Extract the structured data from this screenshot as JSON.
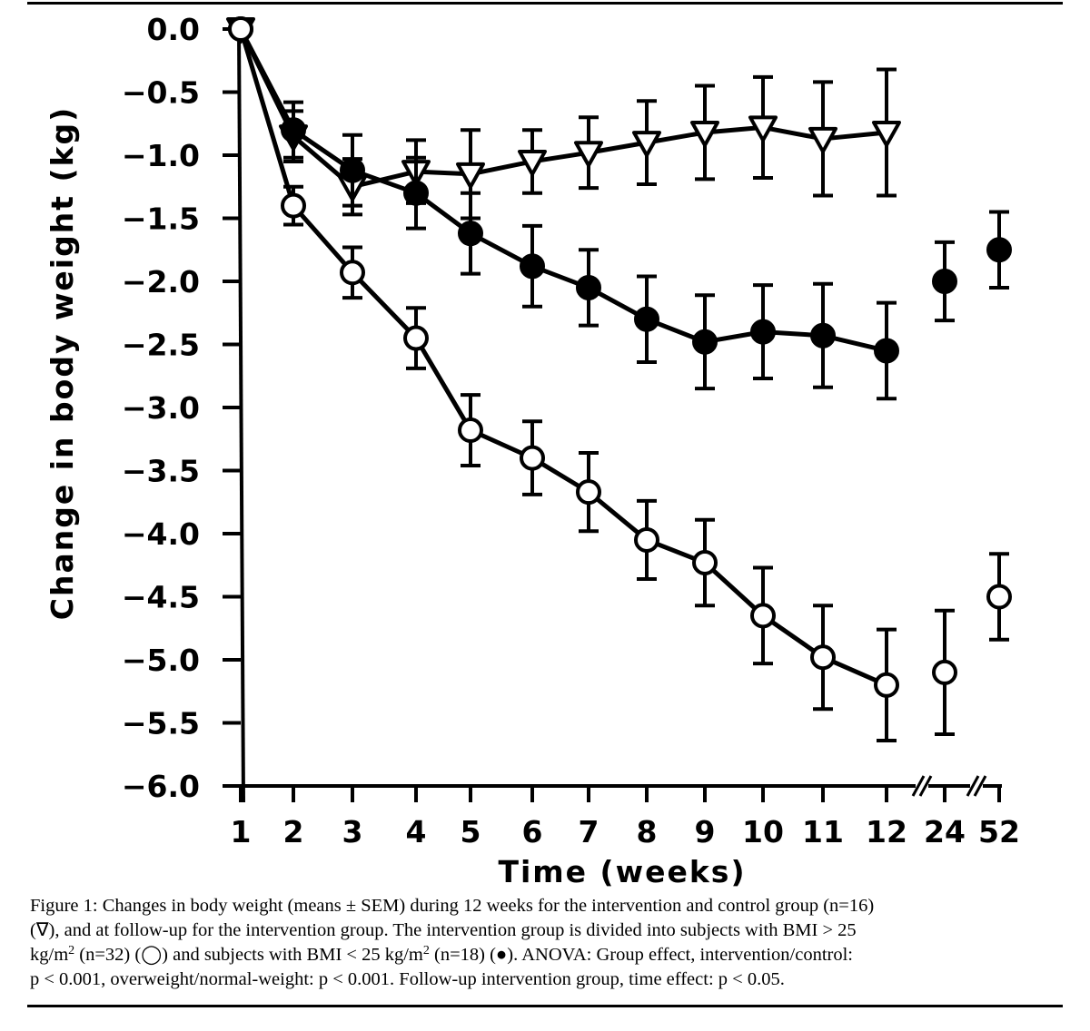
{
  "chart_data": {
    "type": "line",
    "title": "",
    "xlabel": "Time (weeks)",
    "ylabel": "Change in body weight (kg)",
    "ylim": [
      -6.0,
      0.0
    ],
    "yticks": [
      "0.0",
      "−0.5",
      "−1.0",
      "−1.5",
      "−2.0",
      "−2.5",
      "−3.0",
      "−3.5",
      "−4.0",
      "−4.5",
      "−5.0",
      "−5.5",
      "−6.0"
    ],
    "ytick_values": [
      0.0,
      -0.5,
      -1.0,
      -1.5,
      -2.0,
      -2.5,
      -3.0,
      -3.5,
      -4.0,
      -4.5,
      -5.0,
      -5.5,
      -6.0
    ],
    "categories": [
      "1",
      "2",
      "3",
      "4",
      "5",
      "6",
      "7",
      "8",
      "9",
      "10",
      "11",
      "12",
      "24",
      "52"
    ],
    "axis_breaks": [
      "12-24",
      "24-52"
    ],
    "grid": false,
    "legend": "none (symbols described in caption)",
    "series": [
      {
        "name": "Control group (n=16)",
        "marker": "open-triangle-down",
        "connected_through": "12",
        "values": [
          0.0,
          -0.85,
          -1.25,
          -1.13,
          -1.15,
          -1.05,
          -0.98,
          -0.9,
          -0.82,
          -0.78,
          -0.87,
          -0.82,
          null,
          null
        ],
        "sem": [
          0.0,
          0.2,
          0.22,
          0.25,
          0.35,
          0.25,
          0.28,
          0.33,
          0.37,
          0.4,
          0.45,
          0.5,
          null,
          null
        ]
      },
      {
        "name": "Intervention BMI < 25 kg/m2 (n=18)",
        "marker": "filled-circle",
        "connected_through": "12",
        "values": [
          0.0,
          -0.8,
          -1.12,
          -1.3,
          -1.62,
          -1.88,
          -2.05,
          -2.3,
          -2.48,
          -2.4,
          -2.43,
          -2.55,
          -2.0,
          -1.75
        ],
        "sem": [
          0.0,
          0.22,
          0.28,
          0.28,
          0.32,
          0.32,
          0.3,
          0.34,
          0.37,
          0.37,
          0.41,
          0.38,
          0.31,
          0.3
        ]
      },
      {
        "name": "Intervention BMI > 25 kg/m2 (n=32)",
        "marker": "open-circle",
        "connected_through": "12",
        "values": [
          0.0,
          -1.4,
          -1.93,
          -2.45,
          -3.18,
          -3.4,
          -3.67,
          -4.05,
          -4.23,
          -4.65,
          -4.98,
          -5.2,
          -5.1,
          -4.5
        ],
        "sem": [
          0.0,
          0.15,
          0.2,
          0.24,
          0.28,
          0.29,
          0.31,
          0.31,
          0.34,
          0.38,
          0.41,
          0.44,
          0.49,
          0.34
        ]
      }
    ]
  },
  "caption": {
    "line1": "Figure 1:  Changes in body weight (means ± SEM) during 12 weeks for the intervention and control group  (n=16)",
    "line2": "(∇), and at follow-up for the intervention group.  The intervention group is divided into subjects with BMI > 25",
    "line3a": "kg/m",
    "line3b": "2",
    "line3c": " (n=32) (◯) and subjects with BMI < 25 kg/m",
    "line3d": "2",
    "line3e": " (n=18) (●).  ANOVA:  Group effect, intervention/control:",
    "line4": "p < 0.001, overweight/normal-weight: p < 0.001.  Follow-up intervention group, time effect: p < 0.05."
  }
}
